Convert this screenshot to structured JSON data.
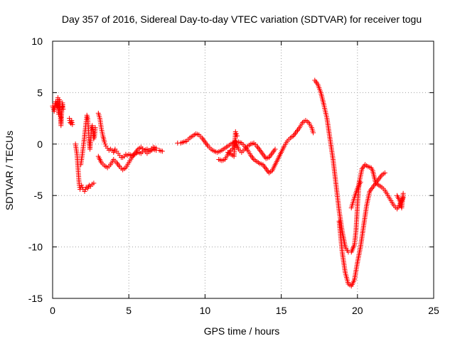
{
  "chart_data": {
    "type": "scatter",
    "title": "Day 357 of 2016, Sidereal Day-to-day VTEC variation (SDTVAR) for receiver togu",
    "xlabel": "GPS time / hours",
    "ylabel": "SDTVAR / TECUs",
    "xlim": [
      0,
      25
    ],
    "ylim": [
      -15,
      10
    ],
    "xticks": [
      0,
      5,
      10,
      15,
      20,
      25
    ],
    "yticks": [
      -15,
      -10,
      -5,
      0,
      5,
      10
    ],
    "grid": true,
    "marker": "+",
    "color": "#ff0000",
    "series": [
      {
        "segments": [
          [
            [
              0.0,
              3.7
            ],
            [
              0.1,
              3.2
            ],
            [
              0.2,
              4.1
            ],
            [
              0.3,
              3.6
            ],
            [
              0.35,
              4.5
            ],
            [
              0.4,
              2.9
            ],
            [
              0.45,
              4.3
            ],
            [
              0.5,
              3.0
            ],
            [
              0.55,
              1.8
            ],
            [
              0.6,
              3.2
            ],
            [
              0.65,
              4.0
            ],
            [
              0.7,
              3.4
            ]
          ],
          [
            [
              1.1,
              2.5
            ],
            [
              1.15,
              2.1
            ],
            [
              1.2,
              2.0
            ],
            [
              1.25,
              2.3
            ],
            [
              1.3,
              1.9
            ]
          ],
          [
            [
              1.5,
              0.0
            ],
            [
              1.6,
              -1.0
            ],
            [
              1.65,
              -2.0
            ],
            [
              1.7,
              -3.0
            ],
            [
              1.75,
              -4.0
            ],
            [
              1.8,
              -4.4
            ],
            [
              1.9,
              -4.0
            ],
            [
              2.0,
              -4.4
            ],
            [
              2.1,
              -4.6
            ],
            [
              2.2,
              -4.2
            ],
            [
              2.3,
              -4.3
            ],
            [
              2.4,
              -4.0
            ],
            [
              2.5,
              -4.1
            ],
            [
              2.6,
              -3.9
            ],
            [
              2.7,
              -3.8
            ]
          ],
          [
            [
              1.85,
              -2.0
            ],
            [
              1.95,
              -1.0
            ],
            [
              2.05,
              0.2
            ],
            [
              2.15,
              1.5
            ],
            [
              2.2,
              2.2
            ],
            [
              2.25,
              2.8
            ],
            [
              2.3,
              2.5
            ],
            [
              2.35,
              1.5
            ],
            [
              2.4,
              0.3
            ],
            [
              2.45,
              -0.5
            ],
            [
              2.5,
              0.5
            ],
            [
              2.55,
              1.5
            ],
            [
              2.6,
              1.8
            ],
            [
              2.65,
              1.2
            ],
            [
              2.7,
              0.5
            ],
            [
              2.75,
              0.8
            ],
            [
              2.8,
              1.6
            ]
          ],
          [
            [
              3.0,
              3.0
            ],
            [
              3.1,
              2.5
            ],
            [
              3.2,
              1.5
            ],
            [
              3.3,
              0.8
            ],
            [
              3.4,
              0.2
            ],
            [
              3.5,
              -0.2
            ],
            [
              3.6,
              -0.4
            ],
            [
              3.7,
              -0.6
            ],
            [
              3.8,
              -0.5
            ],
            [
              3.9,
              -0.6
            ],
            [
              4.0,
              -0.8
            ],
            [
              4.1,
              -0.5
            ],
            [
              4.2,
              -0.7
            ],
            [
              4.3,
              -0.9
            ],
            [
              4.4,
              -1.1
            ],
            [
              4.5,
              -1.3
            ],
            [
              4.6,
              -1.3
            ],
            [
              4.7,
              -1.2
            ],
            [
              4.8,
              -1.0
            ],
            [
              4.9,
              -1.1
            ],
            [
              5.0,
              -1.0
            ],
            [
              5.2,
              -1.1
            ],
            [
              5.4,
              -1.0
            ],
            [
              5.6,
              -0.8
            ],
            [
              5.8,
              -0.9
            ],
            [
              6.0,
              -0.6
            ],
            [
              6.2,
              -0.5
            ],
            [
              6.4,
              -0.7
            ],
            [
              6.6,
              -0.5
            ],
            [
              6.8,
              -0.6
            ],
            [
              7.0,
              -0.6
            ],
            [
              7.2,
              -0.7
            ]
          ],
          [
            [
              3.0,
              -1.2
            ],
            [
              3.2,
              -1.8
            ],
            [
              3.4,
              -2.1
            ],
            [
              3.6,
              -2.3
            ],
            [
              3.8,
              -2.0
            ],
            [
              4.0,
              -1.5
            ],
            [
              4.2,
              -1.8
            ],
            [
              4.4,
              -2.2
            ],
            [
              4.6,
              -2.5
            ],
            [
              4.8,
              -2.3
            ],
            [
              5.0,
              -1.8
            ],
            [
              5.2,
              -1.3
            ],
            [
              5.4,
              -0.9
            ],
            [
              5.6,
              -0.5
            ],
            [
              5.8,
              -0.3
            ],
            [
              6.0,
              -0.6
            ],
            [
              6.2,
              -0.9
            ],
            [
              6.4,
              -0.6
            ],
            [
              6.6,
              -0.3
            ],
            [
              6.8,
              -0.4
            ]
          ],
          [
            [
              8.2,
              0.1
            ],
            [
              8.4,
              0.1
            ],
            [
              8.6,
              0.2
            ],
            [
              8.8,
              0.3
            ],
            [
              9.0,
              0.6
            ],
            [
              9.2,
              0.8
            ],
            [
              9.4,
              1.0
            ],
            [
              9.6,
              0.9
            ],
            [
              9.8,
              0.6
            ],
            [
              10.0,
              0.2
            ],
            [
              10.2,
              -0.2
            ],
            [
              10.4,
              -0.5
            ],
            [
              10.6,
              -0.7
            ],
            [
              10.8,
              -0.8
            ],
            [
              11.0,
              -0.7
            ],
            [
              11.2,
              -0.5
            ],
            [
              11.4,
              -0.3
            ],
            [
              11.6,
              -0.1
            ],
            [
              11.8,
              0.1
            ],
            [
              12.0,
              0.2
            ],
            [
              12.2,
              0.2
            ],
            [
              12.4,
              0.1
            ],
            [
              12.6,
              -0.2
            ],
            [
              12.8,
              -0.6
            ],
            [
              13.0,
              -1.1
            ],
            [
              13.2,
              -1.5
            ],
            [
              13.4,
              -1.7
            ],
            [
              13.6,
              -1.9
            ],
            [
              13.8,
              -2.0
            ],
            [
              14.0,
              -2.4
            ],
            [
              14.2,
              -2.8
            ],
            [
              14.4,
              -2.6
            ],
            [
              14.6,
              -2.0
            ],
            [
              14.8,
              -1.4
            ],
            [
              15.0,
              -0.8
            ],
            [
              15.2,
              -0.2
            ],
            [
              15.4,
              0.3
            ],
            [
              15.6,
              0.6
            ],
            [
              15.8,
              0.8
            ],
            [
              16.0,
              1.2
            ],
            [
              16.2,
              1.6
            ],
            [
              16.4,
              2.1
            ],
            [
              16.6,
              2.3
            ],
            [
              16.8,
              2.1
            ],
            [
              17.0,
              1.6
            ],
            [
              17.1,
              1.1
            ]
          ],
          [
            [
              10.9,
              -1.5
            ],
            [
              11.1,
              -1.6
            ],
            [
              11.3,
              -1.5
            ],
            [
              11.5,
              -1.0
            ],
            [
              11.7,
              -0.6
            ],
            [
              11.9,
              -0.3
            ],
            [
              12.0,
              0.3
            ],
            [
              12.2,
              -0.5
            ],
            [
              12.4,
              -0.8
            ],
            [
              12.6,
              -0.5
            ],
            [
              12.8,
              -0.2
            ],
            [
              13.0,
              0.0
            ],
            [
              13.2,
              0.1
            ],
            [
              13.4,
              -0.2
            ],
            [
              13.6,
              -0.6
            ],
            [
              13.8,
              -1.0
            ],
            [
              14.0,
              -1.4
            ],
            [
              14.2,
              -1.3
            ],
            [
              14.4,
              -0.9
            ],
            [
              14.6,
              -0.5
            ]
          ],
          [
            [
              11.5,
              -0.8
            ],
            [
              11.7,
              -1.0
            ],
            [
              11.9,
              -1.2
            ],
            [
              12.0,
              1.2
            ],
            [
              12.1,
              0.8
            ]
          ],
          [
            [
              17.2,
              6.2
            ],
            [
              17.4,
              5.8
            ],
            [
              17.6,
              5.0
            ],
            [
              17.8,
              3.8
            ],
            [
              18.0,
              2.5
            ],
            [
              18.2,
              0.5
            ],
            [
              18.4,
              -1.5
            ],
            [
              18.6,
              -4.0
            ],
            [
              18.8,
              -6.5
            ],
            [
              19.0,
              -8.5
            ],
            [
              19.2,
              -10.0
            ],
            [
              19.4,
              -10.5
            ],
            [
              19.6,
              -10.5
            ],
            [
              19.8,
              -9.8
            ],
            [
              19.9,
              -8.5
            ],
            [
              20.0,
              -6.0
            ],
            [
              20.1,
              -3.8
            ],
            [
              20.3,
              -2.4
            ],
            [
              20.5,
              -2.0
            ],
            [
              20.7,
              -2.2
            ],
            [
              20.9,
              -2.3
            ],
            [
              21.0,
              -2.6
            ],
            [
              21.1,
              -3.2
            ],
            [
              21.2,
              -3.8
            ],
            [
              21.4,
              -4.0
            ],
            [
              21.6,
              -4.2
            ],
            [
              21.8,
              -4.5
            ],
            [
              22.0,
              -5.0
            ],
            [
              22.2,
              -5.5
            ],
            [
              22.4,
              -6.0
            ],
            [
              22.6,
              -6.3
            ],
            [
              22.8,
              -5.8
            ],
            [
              23.0,
              -5.2
            ]
          ],
          [
            [
              18.8,
              -7.5
            ],
            [
              19.0,
              -10.5
            ],
            [
              19.2,
              -12.5
            ],
            [
              19.4,
              -13.6
            ],
            [
              19.6,
              -13.8
            ],
            [
              19.8,
              -13.2
            ],
            [
              20.0,
              -11.5
            ],
            [
              20.2,
              -10.0
            ],
            [
              20.4,
              -8.0
            ],
            [
              20.6,
              -6.0
            ],
            [
              20.8,
              -4.6
            ],
            [
              21.0,
              -4.2
            ],
            [
              21.2,
              -3.8
            ],
            [
              21.4,
              -3.4
            ],
            [
              21.6,
              -3.0
            ],
            [
              21.8,
              -2.8
            ]
          ],
          [
            [
              19.6,
              -6.2
            ],
            [
              19.8,
              -5.2
            ],
            [
              20.0,
              -4.3
            ],
            [
              20.2,
              -3.7
            ]
          ],
          [
            [
              22.6,
              -5.0
            ],
            [
              22.8,
              -5.6
            ],
            [
              22.9,
              -6.2
            ],
            [
              23.0,
              -4.8
            ]
          ]
        ]
      }
    ]
  }
}
